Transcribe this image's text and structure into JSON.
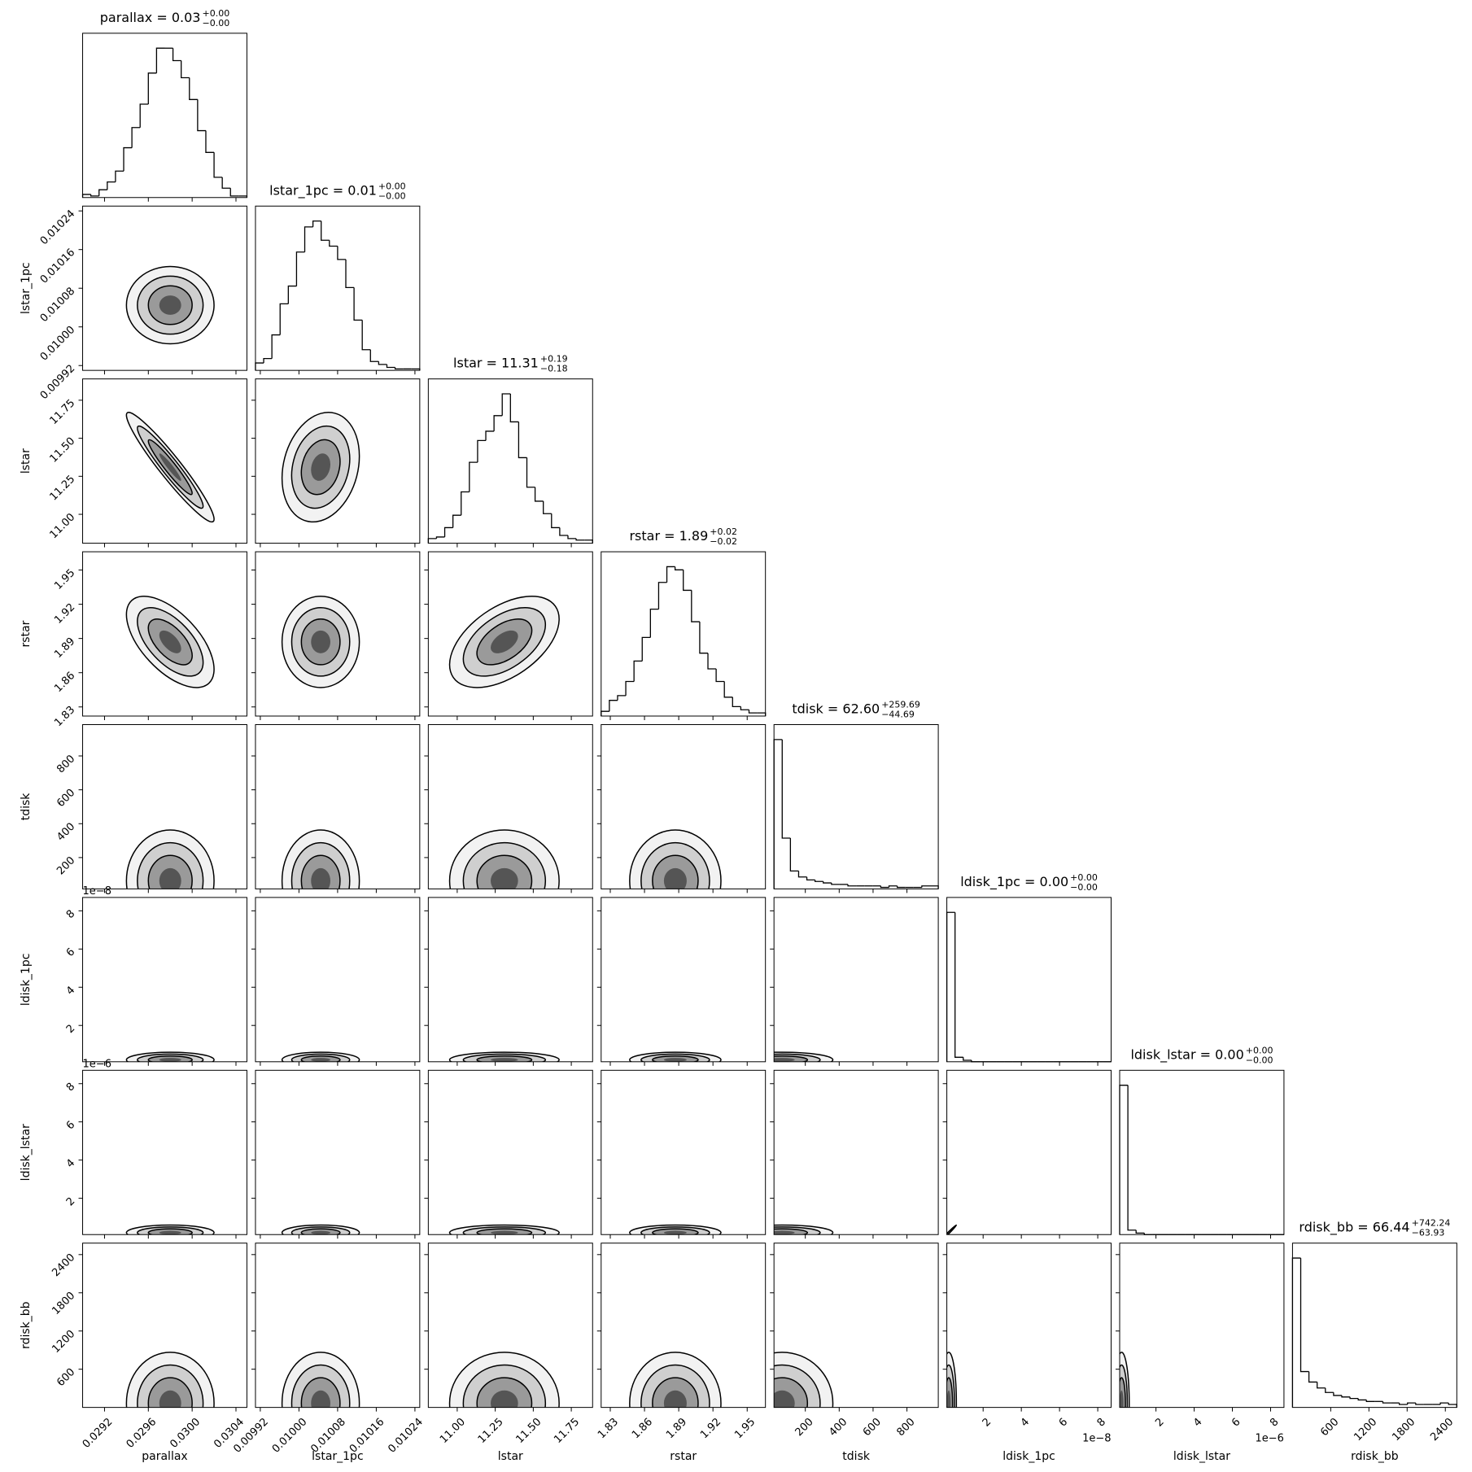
{
  "chart_data": {
    "type": "corner",
    "params": [
      {
        "label": "parallax",
        "title": "parallax = 0.03",
        "upper": "+0.00",
        "lower": "−0.00",
        "xlim": [
          0.029,
          0.0305
        ],
        "ticks": [
          0.0292,
          0.0296,
          {
            "value": 0.03,
            "label": "0.0300"
          },
          0.0304
        ],
        "center": 0.0298,
        "spread": 0.0002,
        "hist": {
          "bins": [
            0.029,
            0.029075,
            0.02915,
            0.029225,
            0.0293,
            0.029375,
            0.02945,
            0.029525,
            0.0296,
            0.029675,
            0.02975,
            0.029825,
            0.0299,
            0.029975,
            0.03005,
            0.030125,
            0.0302,
            0.030275,
            0.03035,
            0.030425,
            0.0305
          ],
          "counts": [
            2,
            1,
            5,
            10,
            17,
            32,
            45,
            60,
            80,
            96,
            96,
            88,
            77,
            63,
            43,
            29,
            13,
            6,
            1,
            1
          ]
        }
      },
      {
        "label": "lstar_1pc",
        "title": "lstar_1pc = 0.01",
        "upper": "+0.00",
        "lower": "−0.00",
        "xlim": [
          0.00991,
          0.01025
        ],
        "ticks": [
          0.00992,
          {
            "value": 0.01,
            "label": "0.01000"
          },
          0.01008,
          0.01016,
          0.01024
        ],
        "center": 0.010045,
        "spread": 4e-05,
        "hist": {
          "bins": [
            0.00991,
            0.009927,
            0.009944,
            0.009961,
            0.009978,
            0.009995,
            0.010012,
            0.010029,
            0.010046,
            0.010063,
            0.01008,
            0.010097,
            0.010114,
            0.010131,
            0.010148,
            0.010165,
            0.010182,
            0.010199,
            0.010216,
            0.010233,
            0.01025
          ],
          "counts": [
            5,
            8,
            24,
            45,
            57,
            80,
            97,
            101,
            88,
            84,
            75,
            56,
            34,
            14,
            6,
            4,
            2,
            1,
            1,
            1
          ]
        }
      },
      {
        "label": "lstar",
        "title": "lstar = 11.31",
        "upper": "+0.19",
        "lower": "−0.18",
        "xlim": [
          10.81,
          11.89
        ],
        "ticks": [
          {
            "value": 11,
            "label": "11.00"
          },
          11.25,
          {
            "value": 11.5,
            "label": "11.50"
          },
          11.75
        ],
        "center": 11.31,
        "spread": 0.18,
        "hist": {
          "bins": [
            10.81,
            10.864,
            10.918,
            10.972,
            11.026,
            11.08,
            11.134,
            11.188,
            11.242,
            11.296,
            11.35,
            11.404,
            11.458,
            11.512,
            11.566,
            11.62,
            11.674,
            11.728,
            11.782,
            11.836,
            11.89
          ],
          "counts": [
            3,
            4,
            10,
            18,
            33,
            52,
            66,
            72,
            82,
            96,
            78,
            55,
            36,
            27,
            19,
            10,
            5,
            3,
            2,
            2
          ]
        }
      },
      {
        "label": "rstar",
        "title": "rstar = 1.89",
        "upper": "+0.02",
        "lower": "−0.02",
        "xlim": [
          1.822,
          1.966
        ],
        "ticks": [
          1.83,
          1.86,
          1.89,
          1.92,
          1.95
        ],
        "center": 1.887,
        "spread": 0.02,
        "hist": {
          "bins": [
            1.822,
            1.8292,
            1.8364,
            1.8436,
            1.8508,
            1.858,
            1.8652,
            1.8724,
            1.8796,
            1.8868,
            1.894,
            1.9012,
            1.9084,
            1.9156,
            1.9228,
            1.93,
            1.9372,
            1.9444,
            1.9516,
            1.9588,
            1.966
          ],
          "counts": [
            3,
            10,
            13,
            22,
            35,
            50,
            68,
            85,
            95,
            93,
            80,
            60,
            40,
            30,
            22,
            12,
            6,
            4,
            2,
            2
          ]
        }
      },
      {
        "label": "tdisk",
        "title": "tdisk = 62.60",
        "upper": "+259.69",
        "lower": "−44.69",
        "xlim": [
          15,
          985
        ],
        "ticks": [
          200,
          400,
          600,
          800
        ],
        "center": 62.6,
        "spread": 150,
        "hist": {
          "bins": [
            15,
            63.5,
            112,
            160.5,
            209,
            257.5,
            306,
            354.5,
            403,
            451.5,
            500,
            548.5,
            597,
            645.5,
            694,
            742.5,
            791,
            839.5,
            888,
            936.5,
            985
          ],
          "counts": [
            100,
            34,
            12,
            8,
            6,
            5,
            4,
            3,
            3,
            2,
            2,
            2,
            2,
            1,
            2,
            1,
            1,
            1,
            2,
            2
          ]
        }
      },
      {
        "label": "ldisk_1pc",
        "title": "ldisk_1pc = 0.00",
        "upper": "+0.00",
        "lower": "−0.00",
        "xlim": [
          1e-09,
          8.7e-08
        ],
        "ticks": [
          {
            "value": 2e-08,
            "label": "2"
          },
          {
            "value": 4e-08,
            "label": "4"
          },
          {
            "value": 6e-08,
            "label": "6"
          },
          {
            "value": 8e-08,
            "label": "8"
          }
        ],
        "offset": "1e−8",
        "center": 2e-09,
        "spread": 2e-09,
        "hist": {
          "bins": [
            1e-09,
            5.3e-09,
            9.6e-09,
            1.39e-08,
            1.82e-08,
            2.25e-08,
            2.68e-08,
            3.11e-08,
            3.54e-08,
            3.97e-08,
            4.4e-08,
            4.83e-08,
            5.26e-08,
            5.69e-08,
            6.12e-08,
            6.55e-08,
            6.98e-08,
            7.41e-08,
            7.84e-08,
            8.27e-08,
            8.7e-08
          ],
          "counts": [
            100,
            3,
            1,
            0,
            0,
            0,
            0,
            0,
            0,
            0,
            0,
            0,
            0,
            0,
            0,
            0,
            0,
            0,
            0,
            0
          ]
        }
      },
      {
        "label": "ldisk_lstar",
        "title": "ldisk_lstar = 0.00",
        "upper": "+0.00",
        "lower": "−0.00",
        "xlim": [
          1e-07,
          8.7e-06
        ],
        "ticks": [
          {
            "value": 2e-06,
            "label": "2"
          },
          {
            "value": 4e-06,
            "label": "4"
          },
          {
            "value": 6e-06,
            "label": "6"
          },
          {
            "value": 8e-06,
            "label": "8"
          }
        ],
        "offset": "1e−6",
        "center": 2e-07,
        "spread": 2e-07,
        "hist": {
          "bins": [
            1e-07,
            5.3e-07,
            9.6e-07,
            1.39e-06,
            1.82e-06,
            2.25e-06,
            2.68e-06,
            3.11e-06,
            3.54e-06,
            3.97e-06,
            4.4e-06,
            4.83e-06,
            5.26e-06,
            5.69e-06,
            6.12e-06,
            6.55e-06,
            6.98e-06,
            7.41e-06,
            7.84e-06,
            8.27e-06,
            8.7e-06
          ],
          "counts": [
            100,
            3,
            1,
            0,
            0,
            0,
            0,
            0,
            0,
            0,
            0,
            0,
            0,
            0,
            0,
            0,
            0,
            0,
            0,
            0
          ]
        }
      },
      {
        "label": "rdisk_bb",
        "title": "rdisk_bb = 66.44",
        "upper": "+742.24",
        "lower": "−63.93",
        "xlim": [
          0,
          2580
        ],
        "ticks": [
          600,
          1200,
          1800,
          2400
        ],
        "center": 66.44,
        "spread": 400,
        "hist": {
          "bins": [
            0,
            129,
            258,
            387,
            516,
            645,
            774,
            903,
            1032,
            1161,
            1290,
            1419,
            1548,
            1677,
            1806,
            1935,
            2064,
            2193,
            2322,
            2451,
            2580
          ],
          "counts": [
            100,
            24,
            17,
            13,
            10,
            8,
            7,
            6,
            5,
            4,
            4,
            3,
            3,
            2,
            3,
            2,
            2,
            2,
            3,
            2
          ]
        }
      }
    ],
    "correlations": [
      {
        "params": [
          "parallax",
          "lstar"
        ],
        "r": -0.95
      },
      {
        "params": [
          "parallax",
          "rstar"
        ],
        "r": -0.6
      },
      {
        "params": [
          "lstar",
          "rstar"
        ],
        "r": 0.5
      },
      {
        "params": [
          "lstar_1pc",
          "lstar"
        ],
        "r": 0.2
      },
      {
        "params": [
          "ldisk_1pc",
          "ldisk_lstar"
        ],
        "r": 0.99
      }
    ]
  }
}
